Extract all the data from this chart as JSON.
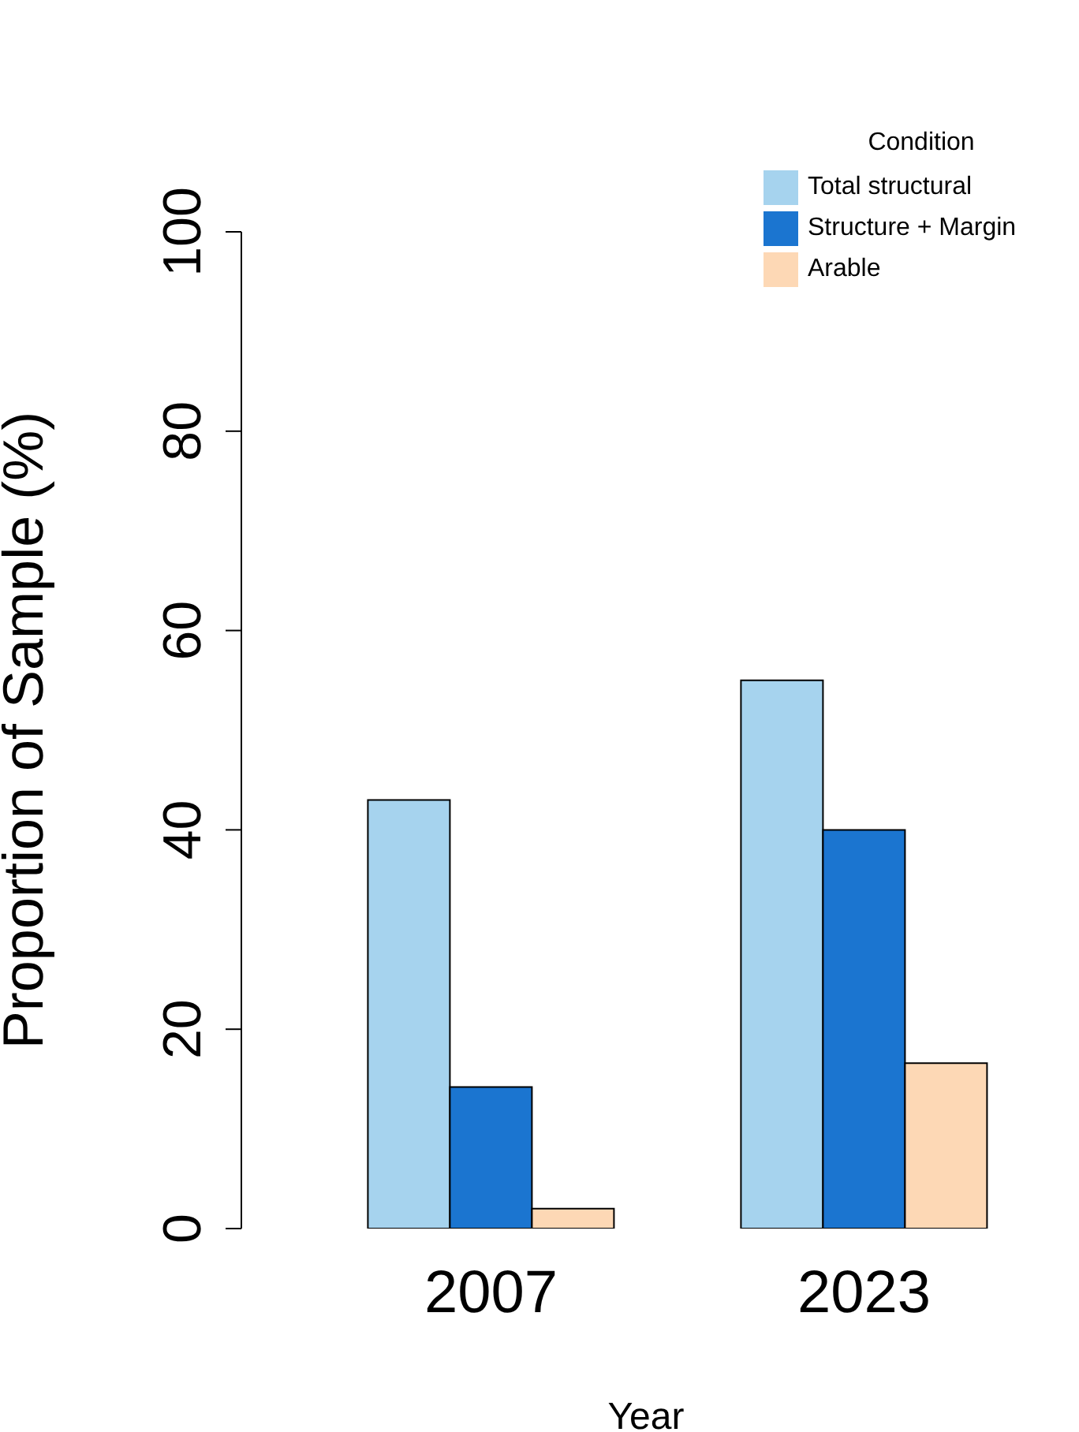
{
  "chart_data": {
    "type": "bar",
    "categories": [
      "2007",
      "2023"
    ],
    "series": [
      {
        "name": "Total structural",
        "color": "#a6d3ee",
        "values": [
          43,
          55
        ]
      },
      {
        "name": "Structure + Margin",
        "color": "#1b75d0",
        "values": [
          14.2,
          40
        ]
      },
      {
        "name": "Arable",
        "color": "#fdd8b5",
        "values": [
          2,
          16.6
        ]
      }
    ],
    "xlabel": "Year",
    "ylabel": "Proportion of Sample (%)",
    "legend_title": "Condition",
    "ylim": [
      0,
      100
    ],
    "yticks": [
      0,
      20,
      40,
      60,
      80,
      100
    ],
    "grid": false,
    "legend": "top right"
  }
}
